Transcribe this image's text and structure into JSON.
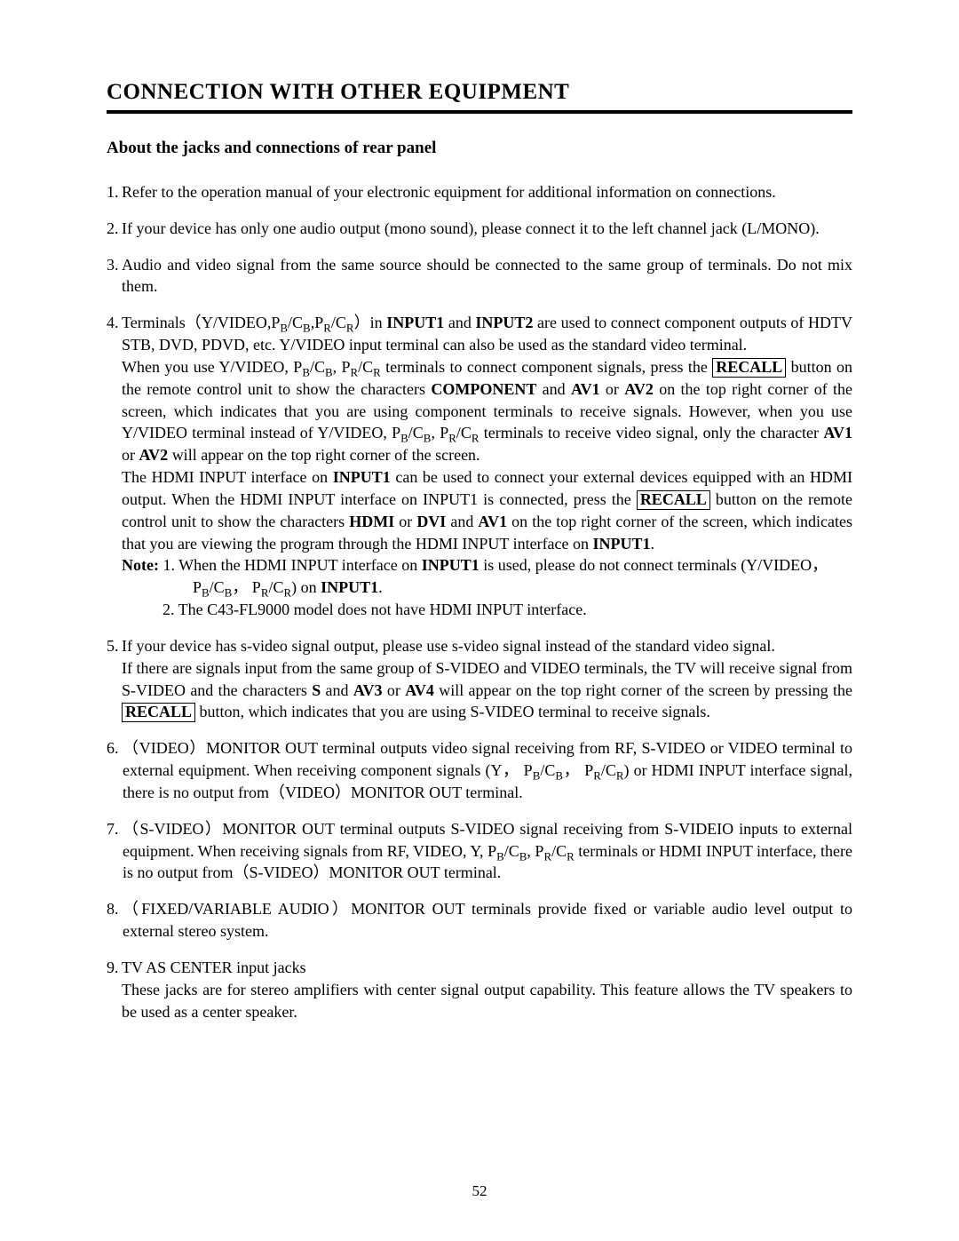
{
  "title": "CONNECTION WITH OTHER EQUIPMENT",
  "subtitle": "About the jacks and connections of rear panel",
  "page_number": "52",
  "text": {
    "p1": "Refer to the operation manual of your electronic equipment for additional information on connections.",
    "p2": "If your device has only one audio output (mono sound), please connect it to the left channel jack (L/MONO).",
    "p3": "Audio and video signal from the same source should be connected to the same group of terminals. Do not mix them.",
    "p4_a": "Terminals（Y/VIDEO,P",
    "p4_b": "/C",
    "p4_c": ",P",
    "p4_d": "/C",
    "p4_e": "）in ",
    "p4_input1": "INPUT1",
    "p4_and": " and ",
    "p4_input2": "INPUT2",
    "p4_f": " are used to connect component outputs of HDTV STB, DVD, PDVD, etc. Y/VIDEO input terminal can also be used as the standard video terminal.",
    "p4_g1": "When you use Y/VIDEO, P",
    "p4_g2": "/C",
    "p4_g3": ", P",
    "p4_g4": "/C",
    "p4_g5": " terminals to connect component signals, press the ",
    "recall": "RECALL",
    "p4_h": " button on the remote control unit to show the characters ",
    "component": "COMPONENT",
    "p4_i": " and ",
    "av1": "AV1",
    "p4_j": " or ",
    "av2": "AV2",
    "p4_k": " on the top right corner of the screen, which indicates that you are using component terminals to receive signals. However, when you use Y/VIDEO terminal instead of Y/VIDEO, P",
    "p4_k2": "/C",
    "p4_k3": ", P",
    "p4_k4": "/C",
    "p4_k5": " terminals to receive video signal, only the character ",
    "p4_l": " or ",
    "p4_m": " will appear on the top right corner of the screen.",
    "p4_n1": "The HDMI INPUT interface on ",
    "p4_n2": " can be used to connect your external devices equipped with an HDMI output. When the HDMI INPUT interface on INPUT1 is connected, press the ",
    "p4_n3": " button on the remote control unit to show the characters ",
    "hdmi": "HDMI",
    "p4_n4": " or ",
    "dvi": "DVI",
    "p4_n5": " and ",
    "p4_n6": " on the top right corner of the screen, which indicates that you are viewing the program through the HDMI INPUT interface on ",
    "p4_n7": ".",
    "note_label": "Note:",
    "note1_a": " 1. When the HDMI INPUT interface on ",
    "note1_b": " is used, please do not connect terminals (Y/VIDEO，",
    "note1_c": "P",
    "note1_d": "/C",
    "note1_e": "， P",
    "note1_f": "/C",
    "note1_g": ") on ",
    "note1_h": ".",
    "note2": "2. The C43-FL9000 model does not have HDMI INPUT interface.",
    "p5_a": "If your device has s-video signal output, please use s-video signal instead of the standard video signal.",
    "p5_b": "If there are signals input from the same group of S-VIDEO and VIDEO terminals, the TV will receive signal from S-VIDEO and the characters ",
    "s_char": "S",
    "p5_c": " and ",
    "av3": "AV3",
    "p5_d": " or ",
    "av4": "AV4",
    "p5_e": " will appear on the top right corner of the screen by pressing the ",
    "p5_f": " button, which indicates that you are using S-VIDEO terminal to receive signals.",
    "p6_a": "（VIDEO）MONITOR OUT terminal outputs video signal receiving from RF, S-VIDEO or VIDEO terminal to external equipment. When receiving component signals (Y， P",
    "p6_b": "/C",
    "p6_c": "， P",
    "p6_d": "/C",
    "p6_e": ") or HDMI INPUT interface signal, there is no output from（VIDEO）MONITOR OUT terminal.",
    "p7_a": "（S-VIDEO）MONITOR OUT terminal outputs S-VIDEO signal receiving from S-VIDEIO inputs to external equipment. When receiving signals from RF, VIDEO, Y, P",
    "p7_b": "/C",
    "p7_c": ", P",
    "p7_d": "/C",
    "p7_e": " terminals or HDMI INPUT interface, there is no output from（S-VIDEO）MONITOR OUT terminal.",
    "p8": "（FIXED/VARIABLE AUDIO）MONITOR OUT terminals provide fixed or variable audio level output to external stereo system.",
    "p9_a": "TV AS CENTER input jacks",
    "p9_b": "These jacks are for stereo amplifiers with center signal output capability. This feature allows the TV speakers to be used as a center speaker.",
    "sub_B": "B",
    "sub_R": "R"
  }
}
